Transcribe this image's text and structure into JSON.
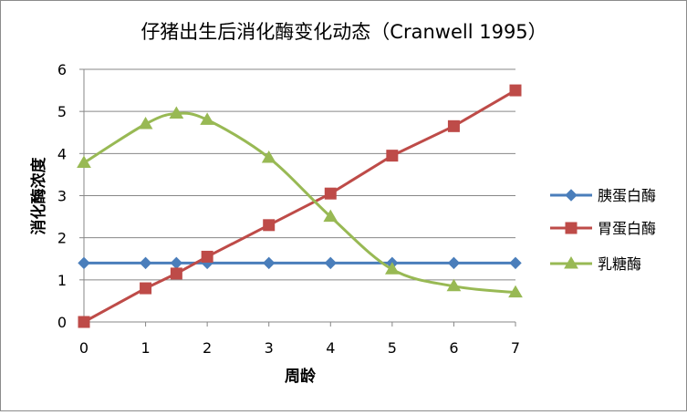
{
  "chart_data": {
    "type": "line",
    "title": "仔猪出生后消化酶变化动态（Cranwell 1995）",
    "xlabel": "周龄",
    "ylabel": "消化酶浓度",
    "xlim": [
      0,
      7
    ],
    "ylim": [
      0,
      6
    ],
    "xticks": [
      "0",
      "1",
      "2",
      "3",
      "4",
      "5",
      "6",
      "7"
    ],
    "yticks": [
      "0",
      "1",
      "2",
      "3",
      "4",
      "5",
      "6"
    ],
    "grid": true,
    "legend_position": "right",
    "series": [
      {
        "name": "胰蛋白酶",
        "color": "#4a7ebb",
        "marker": "diamond",
        "smooth": false,
        "x": [
          0,
          1,
          1.5,
          2,
          3,
          4,
          5,
          6,
          7
        ],
        "y": [
          1.4,
          1.4,
          1.4,
          1.4,
          1.4,
          1.4,
          1.4,
          1.4,
          1.4
        ]
      },
      {
        "name": "胃蛋白酶",
        "color": "#be4b48",
        "marker": "square",
        "smooth": false,
        "x": [
          0,
          1,
          1.5,
          2,
          3,
          4,
          5,
          6,
          7
        ],
        "y": [
          0,
          0.8,
          1.15,
          1.55,
          2.3,
          3.05,
          3.95,
          4.65,
          5.5
        ]
      },
      {
        "name": "乳糖酶",
        "color": "#98b954",
        "marker": "triangle",
        "smooth": true,
        "x": [
          0,
          1,
          1.5,
          2,
          3,
          4,
          5,
          6,
          7
        ],
        "y": [
          3.78,
          4.7,
          4.95,
          4.8,
          3.9,
          2.5,
          1.25,
          0.85,
          0.7
        ]
      }
    ]
  }
}
